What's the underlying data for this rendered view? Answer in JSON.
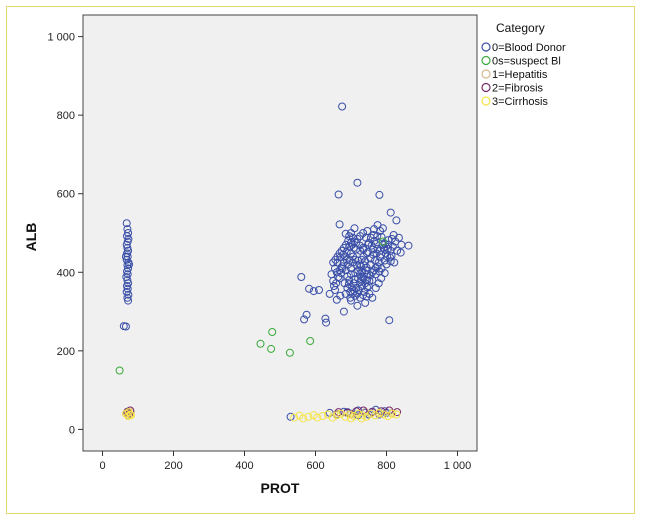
{
  "chart_data": {
    "type": "scatter",
    "xlabel": "PROT",
    "ylabel": "ALB",
    "xlim": [
      -55,
      1055
    ],
    "ylim": [
      -55,
      1055
    ],
    "x_ticks": [
      0,
      200,
      400,
      600,
      800,
      1000
    ],
    "y_ticks": [
      0,
      200,
      400,
      600,
      800,
      1000
    ],
    "x_tick_labels": [
      "0",
      "200",
      "400",
      "600",
      "800",
      "1 000"
    ],
    "y_tick_labels": [
      "0",
      "200",
      "400",
      "600",
      "800",
      "1 000"
    ],
    "grid": false,
    "legend": {
      "title": "Category",
      "position": "right",
      "entries": [
        "0=Blood Donor",
        "0s=suspect Bl",
        "1=Hepatitis",
        "2=Fibrosis",
        "3=Cirrhosis"
      ]
    },
    "series": [
      {
        "name": "0=Blood Donor",
        "color": "#3a4fa8",
        "points": [
          [
            68,
            525
          ],
          [
            70,
            510
          ],
          [
            72,
            500
          ],
          [
            69,
            492
          ],
          [
            73,
            485
          ],
          [
            71,
            478
          ],
          [
            68,
            470
          ],
          [
            70,
            462
          ],
          [
            72,
            455
          ],
          [
            69,
            448
          ],
          [
            71,
            440
          ],
          [
            68,
            432
          ],
          [
            73,
            425
          ],
          [
            70,
            418
          ],
          [
            72,
            410
          ],
          [
            69,
            402
          ],
          [
            71,
            395
          ],
          [
            67,
            388
          ],
          [
            70,
            380
          ],
          [
            72,
            372
          ],
          [
            69,
            365
          ],
          [
            71,
            358
          ],
          [
            68,
            350
          ],
          [
            73,
            343
          ],
          [
            70,
            335
          ],
          [
            72,
            328
          ],
          [
            60,
            263
          ],
          [
            66,
            262
          ],
          [
            75,
            420
          ],
          [
            66,
            440
          ],
          [
            675,
            822
          ],
          [
            718,
            628
          ],
          [
            665,
            598
          ],
          [
            780,
            597
          ],
          [
            668,
            522
          ],
          [
            828,
            532
          ],
          [
            812,
            552
          ],
          [
            862,
            468
          ],
          [
            808,
            278
          ],
          [
            560,
            388
          ],
          [
            582,
            358
          ],
          [
            595,
            352
          ],
          [
            610,
            355
          ],
          [
            568,
            280
          ],
          [
            575,
            292
          ],
          [
            628,
            282
          ],
          [
            630,
            272
          ],
          [
            680,
            300
          ],
          [
            718,
            315
          ],
          [
            740,
            322
          ],
          [
            760,
            335
          ],
          [
            700,
            328
          ],
          [
            655,
            355
          ],
          [
            640,
            345
          ],
          [
            700,
            410
          ],
          [
            705,
            425
          ],
          [
            712,
            398
          ],
          [
            720,
            430
          ],
          [
            728,
            415
          ],
          [
            735,
            440
          ],
          [
            742,
            405
          ],
          [
            748,
            452
          ],
          [
            755,
            420
          ],
          [
            762,
            445
          ],
          [
            768,
            430
          ],
          [
            775,
            460
          ],
          [
            782,
            438
          ],
          [
            790,
            470
          ],
          [
            798,
            448
          ],
          [
            805,
            482
          ],
          [
            812,
            455
          ],
          [
            820,
            495
          ],
          [
            690,
            390
          ],
          [
            685,
            405
          ],
          [
            695,
            380
          ],
          [
            708,
            372
          ],
          [
            715,
            360
          ],
          [
            725,
            375
          ],
          [
            732,
            388
          ],
          [
            745,
            395
          ],
          [
            752,
            378
          ],
          [
            760,
            400
          ],
          [
            770,
            412
          ],
          [
            778,
            425
          ],
          [
            786,
            410
          ],
          [
            795,
            430
          ],
          [
            660,
            400
          ],
          [
            668,
            385
          ],
          [
            675,
            415
          ],
          [
            682,
            372
          ],
          [
            690,
            360
          ],
          [
            698,
            350
          ],
          [
            705,
            345
          ],
          [
            712,
            340
          ],
          [
            722,
            355
          ],
          [
            730,
            365
          ],
          [
            738,
            350
          ],
          [
            745,
            362
          ],
          [
            650,
            378
          ],
          [
            645,
            395
          ],
          [
            655,
            410
          ],
          [
            662,
            425
          ],
          [
            670,
            438
          ],
          [
            678,
            445
          ],
          [
            688,
            452
          ],
          [
            695,
            465
          ],
          [
            703,
            470
          ],
          [
            710,
            478
          ],
          [
            718,
            485
          ],
          [
            726,
            492
          ],
          [
            734,
            500
          ],
          [
            742,
            488
          ],
          [
            750,
            475
          ],
          [
            758,
            468
          ],
          [
            766,
            480
          ],
          [
            774,
            492
          ],
          [
            782,
            505
          ],
          [
            790,
            512
          ],
          [
            760,
            380
          ],
          [
            770,
            395
          ],
          [
            780,
            402
          ],
          [
            800,
            420
          ],
          [
            810,
            438
          ],
          [
            818,
            465
          ],
          [
            825,
            478
          ],
          [
            835,
            488
          ],
          [
            840,
            450
          ],
          [
            720,
            405
          ],
          [
            724,
            420
          ],
          [
            730,
            432
          ],
          [
            736,
            418
          ],
          [
            740,
            428
          ],
          [
            744,
            412
          ],
          [
            738,
            398
          ],
          [
            732,
            402
          ],
          [
            716,
            418
          ],
          [
            712,
            432
          ],
          [
            706,
            440
          ],
          [
            700,
            448
          ],
          [
            696,
            430
          ],
          [
            692,
            420
          ],
          [
            688,
            432
          ],
          [
            684,
            440
          ],
          [
            680,
            425
          ],
          [
            676,
            410
          ],
          [
            672,
            398
          ],
          [
            668,
            405
          ],
          [
            664,
            388
          ],
          [
            658,
            372
          ],
          [
            652,
            365
          ],
          [
            700,
            500
          ],
          [
            710,
            512
          ],
          [
            765,
            510
          ],
          [
            775,
            520
          ],
          [
            746,
            505
          ],
          [
            786,
            490
          ],
          [
            796,
            472
          ],
          [
            804,
            460
          ],
          [
            814,
            442
          ],
          [
            822,
            425
          ],
          [
            830,
            455
          ],
          [
            842,
            470
          ],
          [
            726,
            455
          ],
          [
            734,
            462
          ],
          [
            748,
            470
          ],
          [
            756,
            488
          ],
          [
            764,
            495
          ],
          [
            770,
            472
          ],
          [
            714,
            458
          ],
          [
            708,
            462
          ],
          [
            700,
            475
          ],
          [
            692,
            480
          ],
          [
            686,
            470
          ],
          [
            680,
            462
          ],
          [
            674,
            455
          ],
          [
            668,
            448
          ],
          [
            662,
            440
          ],
          [
            656,
            432
          ],
          [
            650,
            425
          ],
          [
            770,
            360
          ],
          [
            778,
            372
          ],
          [
            785,
            385
          ],
          [
            795,
            398
          ],
          [
            752,
            345
          ],
          [
            744,
            338
          ],
          [
            734,
            342
          ],
          [
            726,
            335
          ],
          [
            718,
            346
          ],
          [
            710,
            352
          ],
          [
            702,
            362
          ],
          [
            694,
            370
          ],
          [
            660,
            330
          ],
          [
            670,
            340
          ],
          [
            685,
            345
          ],
          [
            698,
            335
          ],
          [
            725,
            395
          ],
          [
            735,
            385
          ],
          [
            745,
            380
          ],
          [
            755,
            392
          ],
          [
            765,
            405
          ],
          [
            775,
            415
          ],
          [
            785,
            445
          ],
          [
            795,
            458
          ],
          [
            805,
            470
          ],
          [
            815,
            485
          ],
          [
            755,
            435
          ],
          [
            745,
            448
          ],
          [
            735,
            458
          ],
          [
            725,
            468
          ],
          [
            715,
            475
          ],
          [
            705,
            488
          ],
          [
            695,
            492
          ],
          [
            685,
            498
          ],
          [
            762,
            458
          ],
          [
            772,
            448
          ],
          [
            782,
            455
          ],
          [
            792,
            462
          ],
          [
            802,
            440
          ],
          [
            812,
            428
          ],
          [
            700,
            395
          ],
          [
            710,
            382
          ],
          [
            720,
            385
          ],
          [
            730,
            378
          ],
          [
            740,
            372
          ],
          [
            750,
            365
          ],
          [
            530,
            32
          ],
          [
            640,
            42
          ],
          [
            660,
            38
          ],
          [
            680,
            45
          ],
          [
            700,
            40
          ],
          [
            720,
            48
          ],
          [
            740,
            42
          ],
          [
            760,
            45
          ],
          [
            780,
            38
          ],
          [
            800,
            42
          ],
          [
            720,
            36
          ],
          [
            690,
            44
          ],
          [
            750,
            38
          ],
          [
            770,
            50
          ],
          [
            795,
            46
          ]
        ]
      },
      {
        "name": "0s=suspect Bl",
        "color": "#3aaa3a",
        "points": [
          [
            48,
            150
          ],
          [
            445,
            218
          ],
          [
            478,
            248
          ],
          [
            475,
            205
          ],
          [
            528,
            195
          ],
          [
            585,
            225
          ],
          [
            790,
            478
          ]
        ]
      },
      {
        "name": "1=Hepatitis",
        "color": "#d4b890",
        "points": [
          [
            68,
            42
          ],
          [
            74,
            40
          ],
          [
            80,
            44
          ],
          [
            72,
            36
          ],
          [
            660,
            40
          ],
          [
            700,
            38
          ],
          [
            740,
            44
          ],
          [
            780,
            40
          ],
          [
            815,
            42
          ]
        ]
      },
      {
        "name": "2=Fibrosis",
        "color": "#7a2a6a",
        "points": [
          [
            70,
            45
          ],
          [
            78,
            48
          ],
          [
            75,
            40
          ],
          [
            665,
            44
          ],
          [
            690,
            42
          ],
          [
            715,
            46
          ],
          [
            735,
            48
          ],
          [
            760,
            44
          ],
          [
            785,
            46
          ],
          [
            808,
            48
          ],
          [
            830,
            44
          ]
        ]
      },
      {
        "name": "3=Cirrhosis",
        "color": "#f4e44a",
        "points": [
          [
            66,
            40
          ],
          [
            72,
            34
          ],
          [
            78,
            38
          ],
          [
            74,
            44
          ],
          [
            80,
            36
          ],
          [
            540,
            30
          ],
          [
            555,
            35
          ],
          [
            565,
            28
          ],
          [
            580,
            32
          ],
          [
            595,
            36
          ],
          [
            605,
            30
          ],
          [
            620,
            34
          ],
          [
            635,
            38
          ],
          [
            648,
            30
          ],
          [
            660,
            36
          ],
          [
            672,
            40
          ],
          [
            684,
            32
          ],
          [
            696,
            38
          ],
          [
            708,
            34
          ],
          [
            720,
            40
          ],
          [
            732,
            36
          ],
          [
            744,
            32
          ],
          [
            756,
            40
          ],
          [
            768,
            36
          ],
          [
            780,
            42
          ],
          [
            792,
            38
          ],
          [
            804,
            34
          ],
          [
            816,
            40
          ],
          [
            828,
            38
          ],
          [
            700,
            28
          ],
          [
            730,
            28
          ]
        ]
      }
    ]
  }
}
